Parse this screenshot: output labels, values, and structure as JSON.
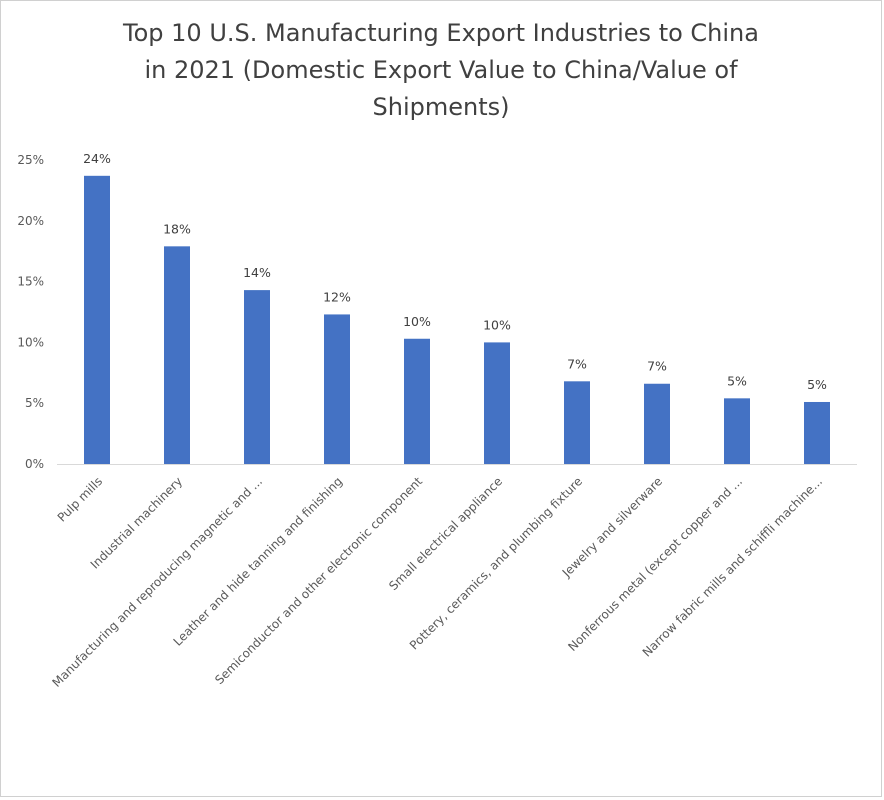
{
  "chart_data": {
    "type": "bar",
    "title": "Top 10 U.S. Manufacturing Export Industries to China in 2021 (Domestic Export Value to China/Value of Shipments)",
    "title_lines": [
      "Top 10 U.S. Manufacturing Export Industries to China",
      "in 2021 (Domestic Export Value to China/Value of",
      "Shipments)"
    ],
    "categories": [
      "Pulp mills",
      "Industrial machinery",
      "Manufacturing and reproducing magnetic and ...",
      "Leather and hide tanning and finishing",
      "Semiconductor and other electronic component",
      "Small electrical appliance",
      "Pottery, ceramics, and plumbing fixture",
      "Jewelry and silverware",
      "Nonferrous metal (except copper and ...",
      "Narrow fabric mills and schiffli machine..."
    ],
    "values": [
      23.7,
      17.9,
      14.3,
      12.3,
      10.3,
      10.0,
      6.8,
      6.6,
      5.4,
      5.1
    ],
    "data_labels": [
      "24%",
      "18%",
      "14%",
      "12%",
      "10%",
      "10%",
      "7%",
      "7%",
      "5%",
      "5%"
    ],
    "y_ticks": [
      0,
      5,
      10,
      15,
      20,
      25
    ],
    "y_tick_labels": [
      "0%",
      "5%",
      "10%",
      "15%",
      "20%",
      "25%"
    ],
    "ylim": [
      0,
      25
    ],
    "xlabel": "",
    "ylabel": "",
    "bar_color": "#4472c4",
    "grid": false,
    "legend": "none"
  }
}
